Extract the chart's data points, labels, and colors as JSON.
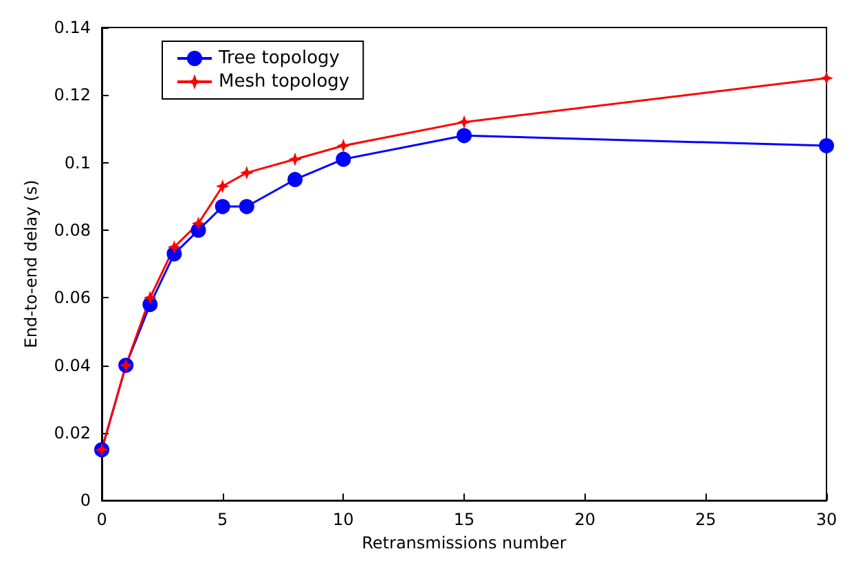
{
  "chart_data": {
    "type": "line",
    "xlabel": "Retransmissions number",
    "ylabel": "End-to-end delay (s)",
    "xlim": [
      0,
      30
    ],
    "xticks": [
      0,
      5,
      10,
      15,
      20,
      25,
      30
    ],
    "ylim": [
      0,
      0.14
    ],
    "yticks": [
      0,
      0.02,
      0.04,
      0.06,
      0.08,
      0.1,
      0.12,
      0.14
    ],
    "grid": false,
    "legend": "top left",
    "series": [
      {
        "name": "Tree topology",
        "color": "#0000ff",
        "marker": "circle",
        "x": [
          0,
          1,
          2,
          3,
          4,
          5,
          6,
          8,
          10,
          15,
          30
        ],
        "values": [
          0.015,
          0.04,
          0.058,
          0.073,
          0.08,
          0.087,
          0.087,
          0.095,
          0.101,
          0.108,
          0.105
        ]
      },
      {
        "name": "Mesh topology",
        "color": "#ff0000",
        "marker": "star",
        "x": [
          0,
          1,
          2,
          3,
          4,
          5,
          6,
          8,
          10,
          15,
          30
        ],
        "values": [
          0.015,
          0.04,
          0.06,
          0.075,
          0.082,
          0.093,
          0.097,
          0.101,
          0.105,
          0.112,
          0.125
        ]
      }
    ]
  }
}
